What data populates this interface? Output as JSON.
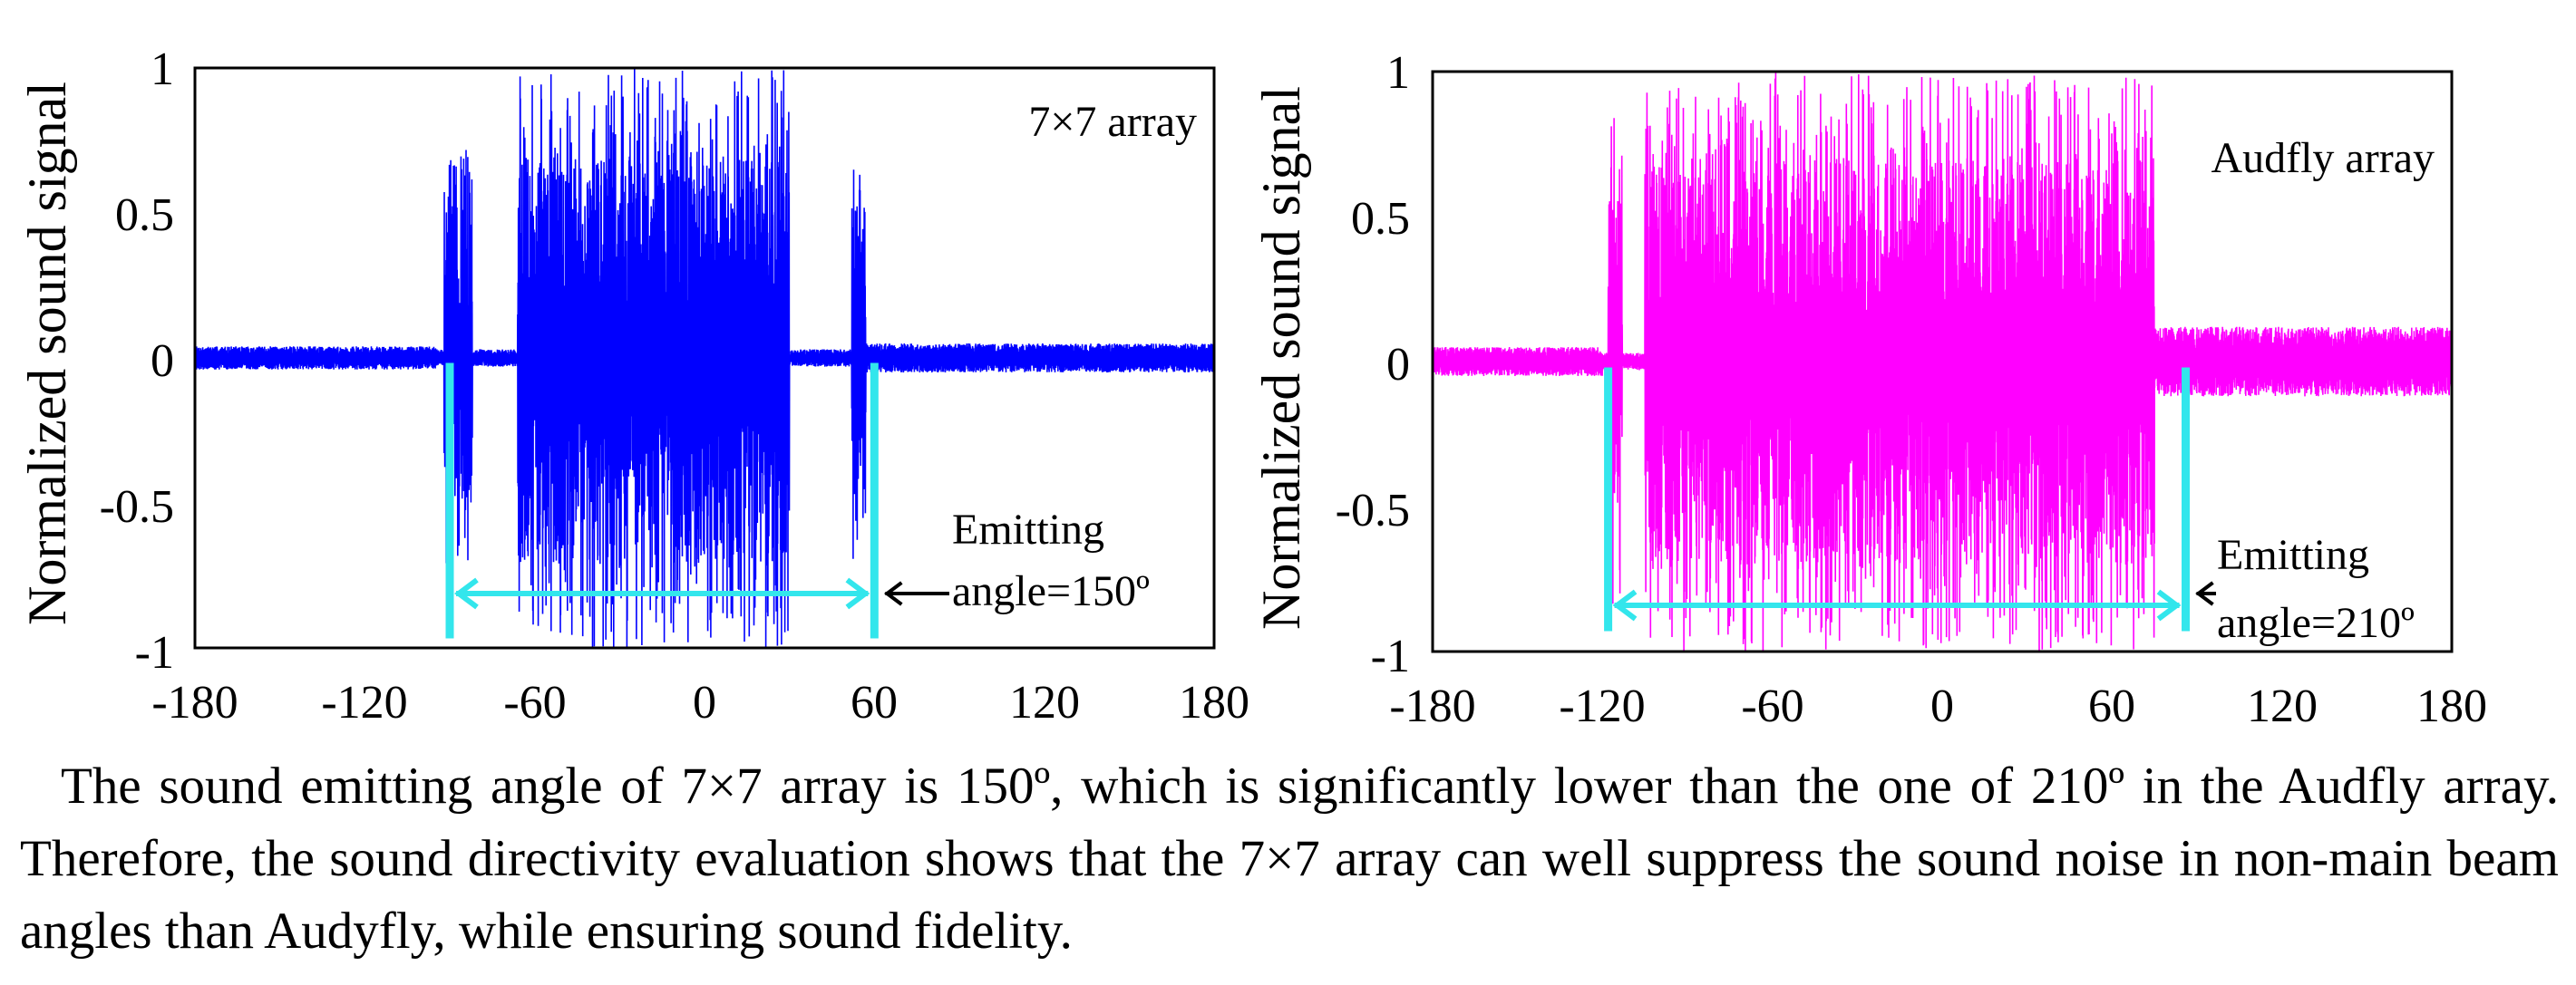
{
  "chart_data": [
    {
      "type": "line",
      "ylabel": "Normalized sound signal",
      "xlim": [
        -180,
        180
      ],
      "ylim": [
        -1,
        1
      ],
      "xticks": [
        "-180",
        "-120",
        "-60",
        "0",
        "60",
        "120",
        "180"
      ],
      "yticks": [
        "1",
        "0.5",
        "0",
        "-0.5",
        "-1"
      ],
      "grid": false,
      "series": [
        {
          "name": "7×7 array",
          "color": "#0000ff",
          "bursts": [
            {
              "from": -180,
              "to": -95,
              "amp": 0.04
            },
            {
              "from": -92,
              "to": -82,
              "amp": 0.75
            },
            {
              "from": -66,
              "to": 30,
              "amp": 1.0
            },
            {
              "from": 52,
              "to": 57,
              "amp": 0.85
            },
            {
              "from": 57,
              "to": 180,
              "amp": 0.05
            }
          ]
        }
      ],
      "annotations": {
        "label": "7×7 array",
        "emitting_text_1": "Emitting",
        "emitting_text_2": "angle=150º",
        "marker_left_x": -90,
        "marker_right_x": 60,
        "marker_color": "#33e6ec"
      }
    },
    {
      "type": "line",
      "ylabel": "Normalized sound signal",
      "xlim": [
        -180,
        180
      ],
      "ylim": [
        -1,
        1
      ],
      "xticks": [
        "-180",
        "-120",
        "-60",
        "0",
        "60",
        "120",
        "180"
      ],
      "yticks": [
        "1",
        "0.5",
        "0",
        "-0.5",
        "-1"
      ],
      "grid": false,
      "series": [
        {
          "name": "Audfly array",
          "color": "#ff00ff",
          "bursts": [
            {
              "from": -180,
              "to": -120,
              "amp": 0.05
            },
            {
              "from": -118,
              "to": -113,
              "amp": 0.85
            },
            {
              "from": -105,
              "to": 75,
              "amp": 1.0
            },
            {
              "from": 75,
              "to": 180,
              "amp": 0.12
            }
          ]
        }
      ],
      "annotations": {
        "label": "Audfly array",
        "emitting_text_1": "Emitting",
        "emitting_text_2": "angle=210º",
        "marker_left_x": -118,
        "marker_right_x": 86,
        "marker_color": "#33e6ec"
      }
    }
  ],
  "caption": "The sound emitting angle of 7×7 array is 150º, which is significantly lower than the one of 210º in the Audfly array. Therefore, the sound directivity evaluation shows that the 7×7 array can well suppress the sound noise in non-main beam angles than Audyfly, while ensuring sound fidelity."
}
